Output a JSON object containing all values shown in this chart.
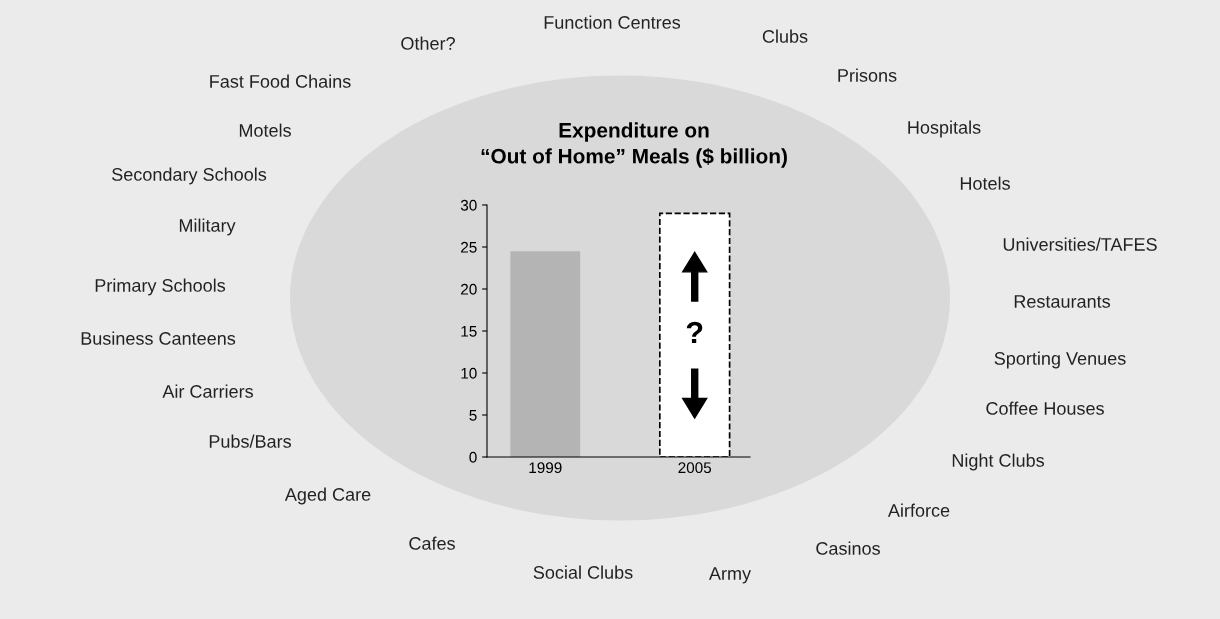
{
  "chart_data": {
    "type": "bar",
    "title": "Expenditure on\n“Out of Home” Meals ($ billion)",
    "categories": [
      "1999",
      "2005"
    ],
    "series": [
      {
        "color": "#b4b4b4",
        "values": [
          24.5,
          null
        ]
      },
      {
        "color": "#ffffff",
        "values": [
          null,
          29
        ],
        "line_style": "dashed"
      }
    ],
    "ylim": [
      0,
      30
    ],
    "yticks": [
      0,
      5,
      10,
      15,
      20,
      25,
      30
    ],
    "grid": false,
    "legend": false,
    "annotations": [
      "?",
      "Function Centres",
      "Clubs",
      "Other?",
      "Prisons",
      "Fast Food Chains",
      "Hospitals",
      "Motels",
      "Secondary Schools",
      "Hotels",
      "Military",
      "Universities/TAFES",
      "Primary Schools",
      "Restaurants",
      "Business Canteens",
      "Sporting Venues",
      "Air Carriers",
      "Coffee Houses",
      "Pubs/Bars",
      "Night Clubs",
      "Aged Care",
      "Airforce",
      "Cafes",
      "Casinos",
      "Social Clubs",
      "Army"
    ]
  }
}
